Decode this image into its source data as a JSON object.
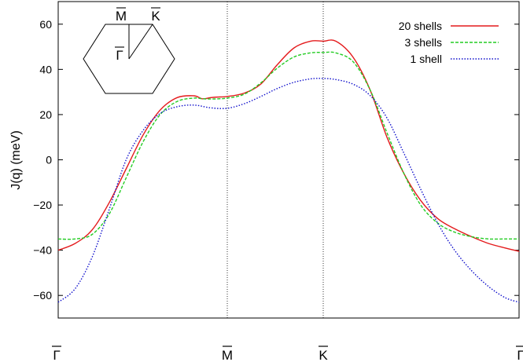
{
  "chart_data": {
    "type": "line",
    "title": "",
    "xlabel": "",
    "ylabel": "J(q) (meV)",
    "ylim": [
      -70,
      70
    ],
    "yticks": [
      "60",
      "40",
      "20",
      "0",
      "−20",
      "−40",
      "−60"
    ],
    "ytick_values": [
      60,
      40,
      20,
      0,
      -20,
      -40,
      -60
    ],
    "xlim": [
      0,
      2.732
    ],
    "xticks": [
      {
        "label": "Γ",
        "value": 0
      },
      {
        "label": "M",
        "value": 1.0
      },
      {
        "label": "K",
        "value": 1.577
      },
      {
        "label": "Γ",
        "value": 2.732
      }
    ],
    "path_x": [
      0,
      0.25,
      0.5,
      0.75,
      1.0,
      1.144,
      1.289,
      1.433,
      1.577,
      1.866,
      2.155,
      2.443,
      2.732
    ],
    "legend_position": "top-right",
    "grid": false,
    "series": [
      {
        "name": "20 shells",
        "color": "#e41a1c",
        "style": "solid",
        "x": [
          0,
          0.1,
          0.2,
          0.3,
          0.4,
          0.5,
          0.6,
          0.7,
          0.8,
          0.85,
          0.9,
          0.95,
          1.0,
          1.1,
          1.2,
          1.3,
          1.4,
          1.5,
          1.577,
          1.65,
          1.75,
          1.85,
          1.95,
          2.05,
          2.15,
          2.25,
          2.35,
          2.45,
          2.55,
          2.65,
          2.732
        ],
        "y": [
          -40,
          -37,
          -31,
          -19,
          -4,
          11,
          22,
          27.5,
          28.3,
          27,
          27.5,
          27.8,
          28,
          29.5,
          33.5,
          42,
          49.5,
          52.5,
          52.5,
          52.5,
          45.5,
          31,
          10,
          -6,
          -18,
          -26,
          -30.5,
          -34,
          -37,
          -39,
          -40.5
        ]
      },
      {
        "name": "3 shells",
        "color": "#22cc22",
        "style": "dashed",
        "x": [
          0,
          0.1,
          0.2,
          0.3,
          0.4,
          0.5,
          0.6,
          0.7,
          0.8,
          0.85,
          0.9,
          0.95,
          1.0,
          1.1,
          1.2,
          1.3,
          1.4,
          1.5,
          1.577,
          1.65,
          1.75,
          1.85,
          1.95,
          2.05,
          2.15,
          2.25,
          2.35,
          2.45,
          2.55,
          2.65,
          2.732
        ],
        "y": [
          -35,
          -35,
          -33,
          -24,
          -8,
          8,
          20,
          25.8,
          27.3,
          27,
          26.9,
          27,
          27.3,
          29,
          34,
          40.5,
          45.5,
          47.3,
          47.5,
          47.3,
          43.5,
          31,
          12,
          -6,
          -20,
          -28,
          -32,
          -34,
          -35,
          -35,
          -35
        ]
      },
      {
        "name": "1 shell",
        "color": "#1010cc",
        "style": "dotted",
        "x": [
          0,
          0.1,
          0.2,
          0.3,
          0.4,
          0.5,
          0.6,
          0.7,
          0.8,
          0.9,
          1.0,
          1.1,
          1.2,
          1.3,
          1.4,
          1.5,
          1.577,
          1.65,
          1.75,
          1.85,
          1.95,
          2.05,
          2.15,
          2.25,
          2.35,
          2.45,
          2.55,
          2.65,
          2.732
        ],
        "y": [
          -63,
          -57,
          -43,
          -22,
          0,
          13,
          20.5,
          23.5,
          24.2,
          23,
          22.8,
          24.8,
          28,
          31.5,
          34.3,
          35.8,
          36,
          35.5,
          33.5,
          28.5,
          18.5,
          3,
          -13,
          -28,
          -40,
          -49,
          -56,
          -61,
          -63
        ]
      }
    ],
    "inset": {
      "labels": [
        "M",
        "K",
        "Γ"
      ]
    }
  }
}
